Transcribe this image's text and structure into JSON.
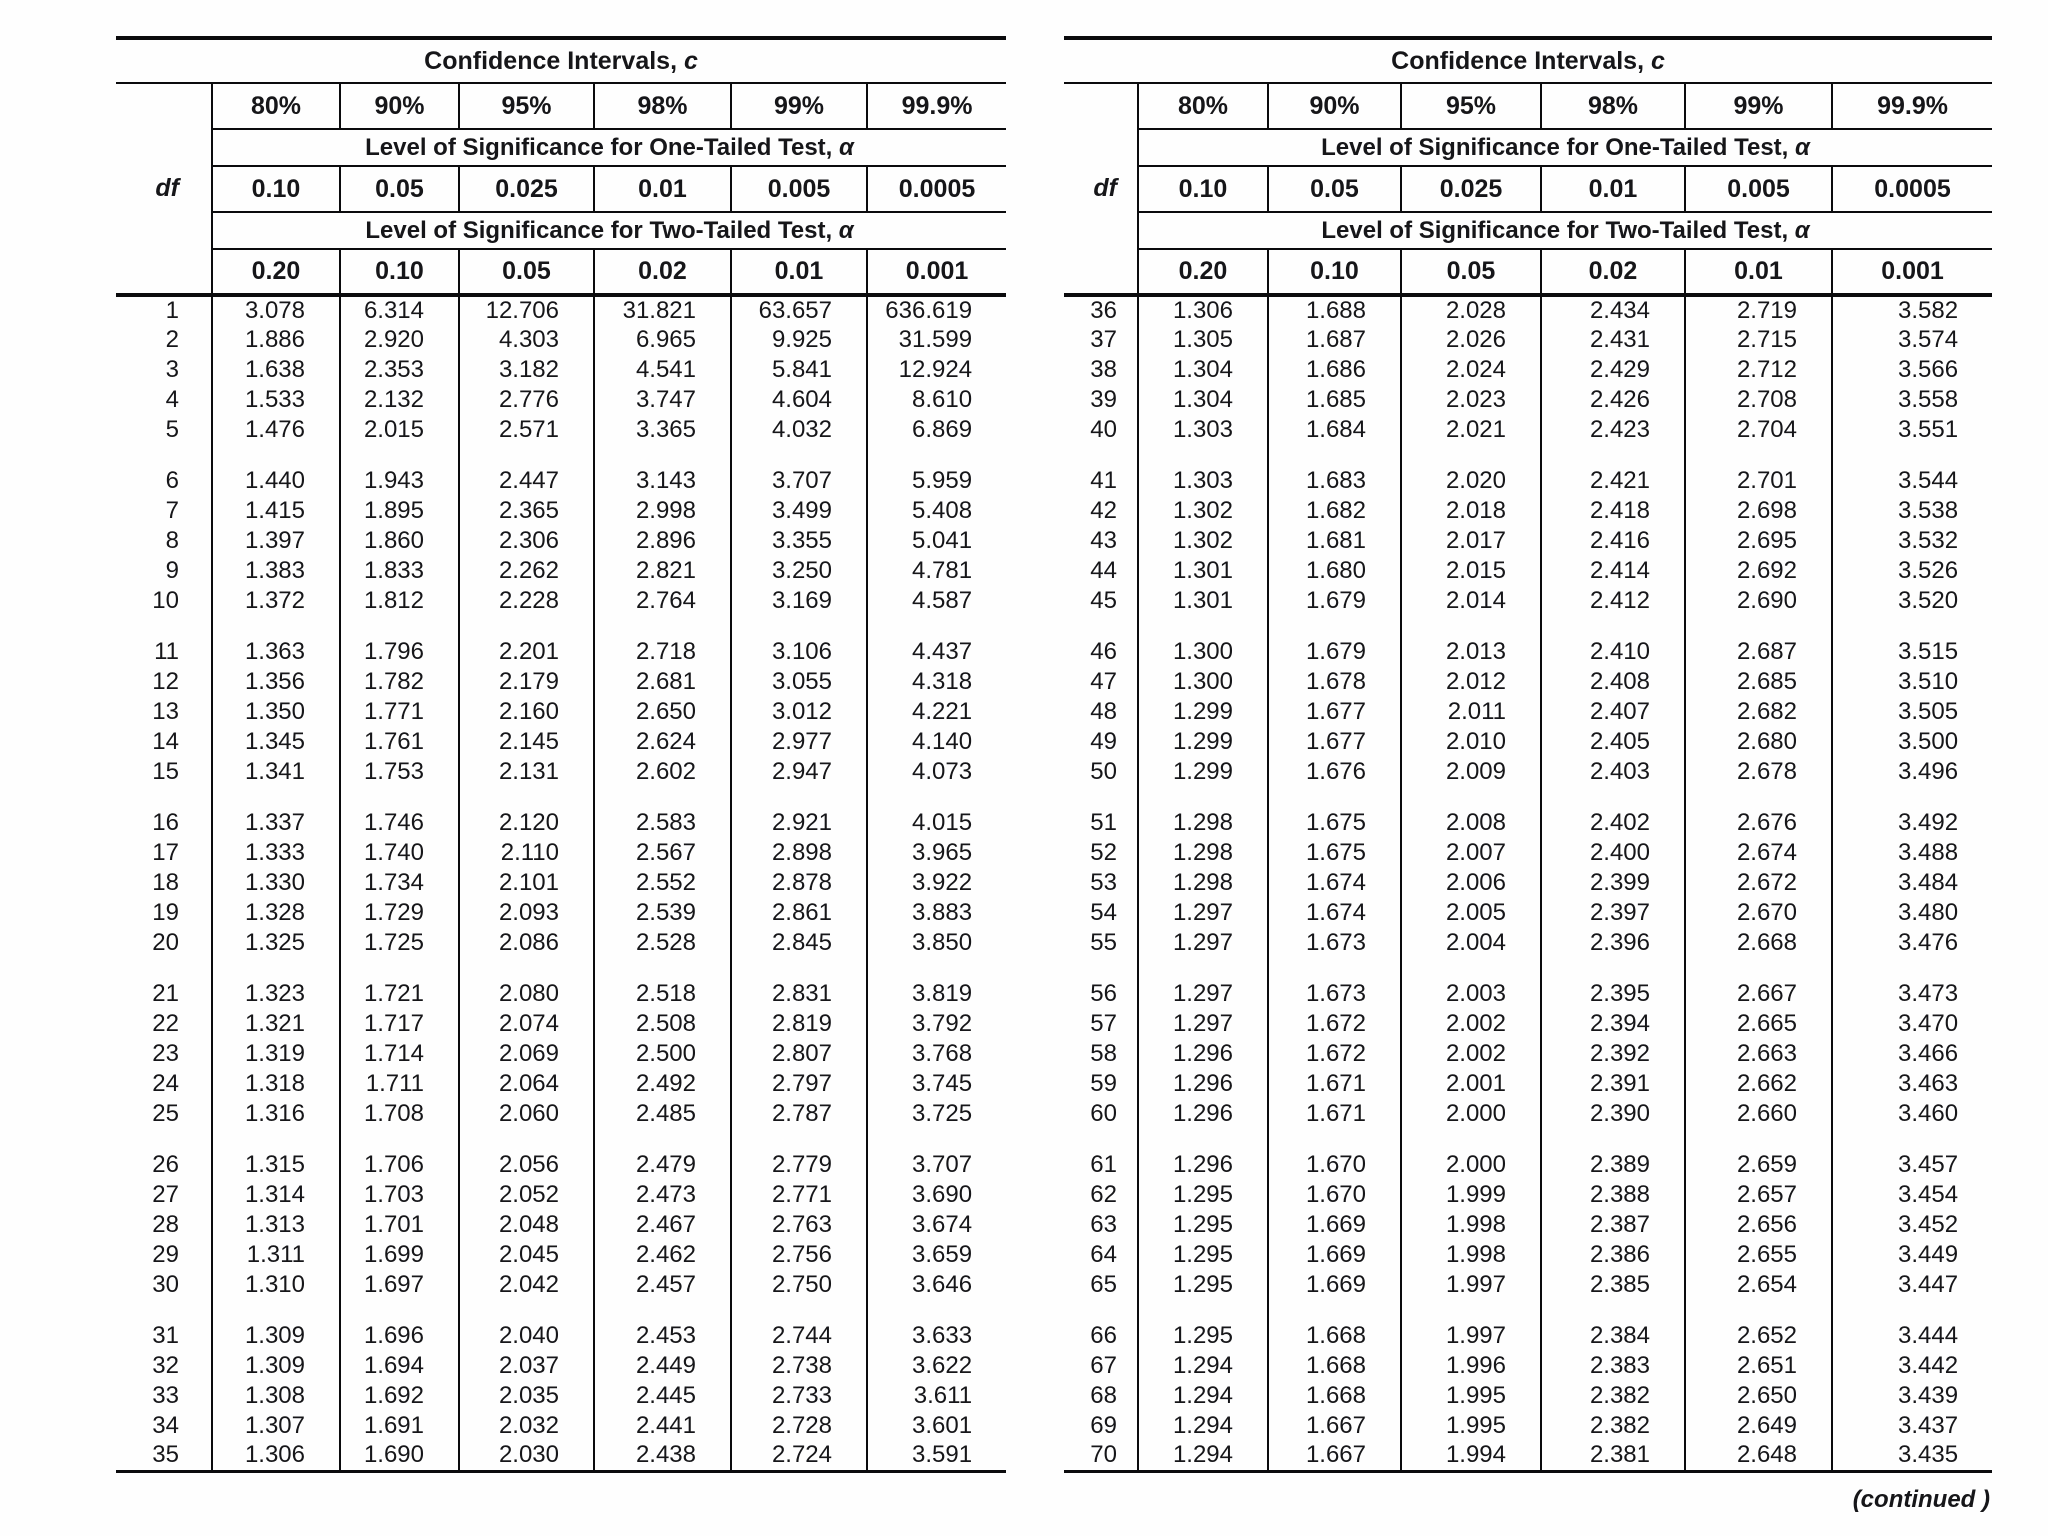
{
  "page": {
    "continued_note": "(continued )"
  },
  "header": {
    "title_main": "Confidence Intervals, ",
    "title_var": "c",
    "df_label": "df",
    "confidence_levels": [
      "80%",
      "90%",
      "95%",
      "98%",
      "99%",
      "99.9%"
    ],
    "one_tailed_label": "Level of Significance for One-Tailed Test, ",
    "two_tailed_label": "Level of Significance for Two-Tailed Test, ",
    "alpha_symbol": "α",
    "one_tailed_alphas": [
      "0.10",
      "0.05",
      "0.025",
      "0.01",
      "0.005",
      "0.0005"
    ],
    "two_tailed_alphas": [
      "0.20",
      "0.10",
      "0.05",
      "0.02",
      "0.01",
      "0.001"
    ]
  },
  "left_table": {
    "rows": [
      [
        "1",
        "3.078",
        "6.314",
        "12.706",
        "31.821",
        "63.657",
        "636.619"
      ],
      [
        "2",
        "1.886",
        "2.920",
        "4.303",
        "6.965",
        "9.925",
        "31.599"
      ],
      [
        "3",
        "1.638",
        "2.353",
        "3.182",
        "4.541",
        "5.841",
        "12.924"
      ],
      [
        "4",
        "1.533",
        "2.132",
        "2.776",
        "3.747",
        "4.604",
        "8.610"
      ],
      [
        "5",
        "1.476",
        "2.015",
        "2.571",
        "3.365",
        "4.032",
        "6.869"
      ],
      [
        "6",
        "1.440",
        "1.943",
        "2.447",
        "3.143",
        "3.707",
        "5.959"
      ],
      [
        "7",
        "1.415",
        "1.895",
        "2.365",
        "2.998",
        "3.499",
        "5.408"
      ],
      [
        "8",
        "1.397",
        "1.860",
        "2.306",
        "2.896",
        "3.355",
        "5.041"
      ],
      [
        "9",
        "1.383",
        "1.833",
        "2.262",
        "2.821",
        "3.250",
        "4.781"
      ],
      [
        "10",
        "1.372",
        "1.812",
        "2.228",
        "2.764",
        "3.169",
        "4.587"
      ],
      [
        "11",
        "1.363",
        "1.796",
        "2.201",
        "2.718",
        "3.106",
        "4.437"
      ],
      [
        "12",
        "1.356",
        "1.782",
        "2.179",
        "2.681",
        "3.055",
        "4.318"
      ],
      [
        "13",
        "1.350",
        "1.771",
        "2.160",
        "2.650",
        "3.012",
        "4.221"
      ],
      [
        "14",
        "1.345",
        "1.761",
        "2.145",
        "2.624",
        "2.977",
        "4.140"
      ],
      [
        "15",
        "1.341",
        "1.753",
        "2.131",
        "2.602",
        "2.947",
        "4.073"
      ],
      [
        "16",
        "1.337",
        "1.746",
        "2.120",
        "2.583",
        "2.921",
        "4.015"
      ],
      [
        "17",
        "1.333",
        "1.740",
        "2.110",
        "2.567",
        "2.898",
        "3.965"
      ],
      [
        "18",
        "1.330",
        "1.734",
        "2.101",
        "2.552",
        "2.878",
        "3.922"
      ],
      [
        "19",
        "1.328",
        "1.729",
        "2.093",
        "2.539",
        "2.861",
        "3.883"
      ],
      [
        "20",
        "1.325",
        "1.725",
        "2.086",
        "2.528",
        "2.845",
        "3.850"
      ],
      [
        "21",
        "1.323",
        "1.721",
        "2.080",
        "2.518",
        "2.831",
        "3.819"
      ],
      [
        "22",
        "1.321",
        "1.717",
        "2.074",
        "2.508",
        "2.819",
        "3.792"
      ],
      [
        "23",
        "1.319",
        "1.714",
        "2.069",
        "2.500",
        "2.807",
        "3.768"
      ],
      [
        "24",
        "1.318",
        "1.711",
        "2.064",
        "2.492",
        "2.797",
        "3.745"
      ],
      [
        "25",
        "1.316",
        "1.708",
        "2.060",
        "2.485",
        "2.787",
        "3.725"
      ],
      [
        "26",
        "1.315",
        "1.706",
        "2.056",
        "2.479",
        "2.779",
        "3.707"
      ],
      [
        "27",
        "1.314",
        "1.703",
        "2.052",
        "2.473",
        "2.771",
        "3.690"
      ],
      [
        "28",
        "1.313",
        "1.701",
        "2.048",
        "2.467",
        "2.763",
        "3.674"
      ],
      [
        "29",
        "1.311",
        "1.699",
        "2.045",
        "2.462",
        "2.756",
        "3.659"
      ],
      [
        "30",
        "1.310",
        "1.697",
        "2.042",
        "2.457",
        "2.750",
        "3.646"
      ],
      [
        "31",
        "1.309",
        "1.696",
        "2.040",
        "2.453",
        "2.744",
        "3.633"
      ],
      [
        "32",
        "1.309",
        "1.694",
        "2.037",
        "2.449",
        "2.738",
        "3.622"
      ],
      [
        "33",
        "1.308",
        "1.692",
        "2.035",
        "2.445",
        "2.733",
        "3.611"
      ],
      [
        "34",
        "1.307",
        "1.691",
        "2.032",
        "2.441",
        "2.728",
        "3.601"
      ],
      [
        "35",
        "1.306",
        "1.690",
        "2.030",
        "2.438",
        "2.724",
        "3.591"
      ]
    ]
  },
  "right_table": {
    "rows": [
      [
        "36",
        "1.306",
        "1.688",
        "2.028",
        "2.434",
        "2.719",
        "3.582"
      ],
      [
        "37",
        "1.305",
        "1.687",
        "2.026",
        "2.431",
        "2.715",
        "3.574"
      ],
      [
        "38",
        "1.304",
        "1.686",
        "2.024",
        "2.429",
        "2.712",
        "3.566"
      ],
      [
        "39",
        "1.304",
        "1.685",
        "2.023",
        "2.426",
        "2.708",
        "3.558"
      ],
      [
        "40",
        "1.303",
        "1.684",
        "2.021",
        "2.423",
        "2.704",
        "3.551"
      ],
      [
        "41",
        "1.303",
        "1.683",
        "2.020",
        "2.421",
        "2.701",
        "3.544"
      ],
      [
        "42",
        "1.302",
        "1.682",
        "2.018",
        "2.418",
        "2.698",
        "3.538"
      ],
      [
        "43",
        "1.302",
        "1.681",
        "2.017",
        "2.416",
        "2.695",
        "3.532"
      ],
      [
        "44",
        "1.301",
        "1.680",
        "2.015",
        "2.414",
        "2.692",
        "3.526"
      ],
      [
        "45",
        "1.301",
        "1.679",
        "2.014",
        "2.412",
        "2.690",
        "3.520"
      ],
      [
        "46",
        "1.300",
        "1.679",
        "2.013",
        "2.410",
        "2.687",
        "3.515"
      ],
      [
        "47",
        "1.300",
        "1.678",
        "2.012",
        "2.408",
        "2.685",
        "3.510"
      ],
      [
        "48",
        "1.299",
        "1.677",
        "2.011",
        "2.407",
        "2.682",
        "3.505"
      ],
      [
        "49",
        "1.299",
        "1.677",
        "2.010",
        "2.405",
        "2.680",
        "3.500"
      ],
      [
        "50",
        "1.299",
        "1.676",
        "2.009",
        "2.403",
        "2.678",
        "3.496"
      ],
      [
        "51",
        "1.298",
        "1.675",
        "2.008",
        "2.402",
        "2.676",
        "3.492"
      ],
      [
        "52",
        "1.298",
        "1.675",
        "2.007",
        "2.400",
        "2.674",
        "3.488"
      ],
      [
        "53",
        "1.298",
        "1.674",
        "2.006",
        "2.399",
        "2.672",
        "3.484"
      ],
      [
        "54",
        "1.297",
        "1.674",
        "2.005",
        "2.397",
        "2.670",
        "3.480"
      ],
      [
        "55",
        "1.297",
        "1.673",
        "2.004",
        "2.396",
        "2.668",
        "3.476"
      ],
      [
        "56",
        "1.297",
        "1.673",
        "2.003",
        "2.395",
        "2.667",
        "3.473"
      ],
      [
        "57",
        "1.297",
        "1.672",
        "2.002",
        "2.394",
        "2.665",
        "3.470"
      ],
      [
        "58",
        "1.296",
        "1.672",
        "2.002",
        "2.392",
        "2.663",
        "3.466"
      ],
      [
        "59",
        "1.296",
        "1.671",
        "2.001",
        "2.391",
        "2.662",
        "3.463"
      ],
      [
        "60",
        "1.296",
        "1.671",
        "2.000",
        "2.390",
        "2.660",
        "3.460"
      ],
      [
        "61",
        "1.296",
        "1.670",
        "2.000",
        "2.389",
        "2.659",
        "3.457"
      ],
      [
        "62",
        "1.295",
        "1.670",
        "1.999",
        "2.388",
        "2.657",
        "3.454"
      ],
      [
        "63",
        "1.295",
        "1.669",
        "1.998",
        "2.387",
        "2.656",
        "3.452"
      ],
      [
        "64",
        "1.295",
        "1.669",
        "1.998",
        "2.386",
        "2.655",
        "3.449"
      ],
      [
        "65",
        "1.295",
        "1.669",
        "1.997",
        "2.385",
        "2.654",
        "3.447"
      ],
      [
        "66",
        "1.295",
        "1.668",
        "1.997",
        "2.384",
        "2.652",
        "3.444"
      ],
      [
        "67",
        "1.294",
        "1.668",
        "1.996",
        "2.383",
        "2.651",
        "3.442"
      ],
      [
        "68",
        "1.294",
        "1.668",
        "1.995",
        "2.382",
        "2.650",
        "3.439"
      ],
      [
        "69",
        "1.294",
        "1.667",
        "1.995",
        "2.382",
        "2.649",
        "3.437"
      ],
      [
        "70",
        "1.294",
        "1.667",
        "1.994",
        "2.381",
        "2.648",
        "3.435"
      ]
    ]
  }
}
